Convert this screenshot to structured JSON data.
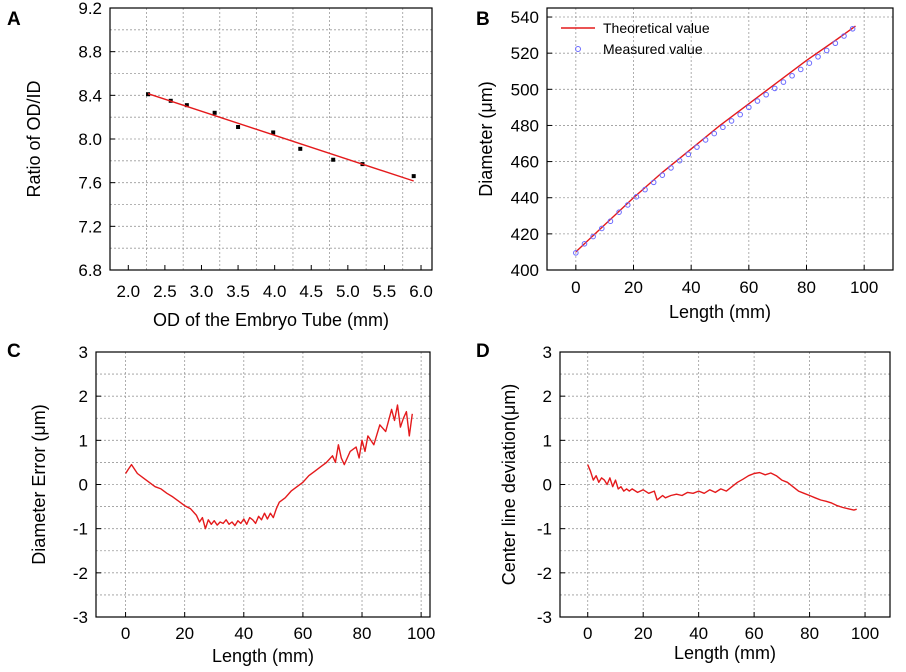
{
  "figure": {
    "colors": {
      "line": "#e41a1c",
      "marker": "#000000",
      "circle": "#6b6bff",
      "grid": "#9a9a9a"
    }
  },
  "chart_data": [
    {
      "id": "A",
      "label": "A",
      "type": "scatter",
      "xlabel": "OD of the Embryo Tube (mm)",
      "ylabel": "Ratio of OD/ID",
      "xlim": [
        1.75,
        6.15
      ],
      "ylim": [
        6.8,
        9.2
      ],
      "xticks": [
        2.0,
        2.5,
        3.0,
        3.5,
        4.0,
        4.5,
        5.0,
        5.5,
        6.0
      ],
      "xtick_labels": [
        "2.0",
        "2.5",
        "3.0",
        "3.5",
        "4.0",
        "4.5",
        "5.0",
        "5.5",
        "6.0"
      ],
      "yticks": [
        6.8,
        7.2,
        7.6,
        8.0,
        8.4,
        8.8,
        9.2
      ],
      "ytick_labels": [
        "6.8",
        "7.2",
        "7.6",
        "8.0",
        "8.4",
        "8.8",
        "9.2"
      ],
      "xgrid": [
        1.75,
        2.25,
        2.75,
        3.25,
        3.75,
        4.25,
        4.75,
        5.25,
        5.75
      ],
      "ygrid": [
        7.0,
        7.2,
        7.4,
        7.6,
        7.8,
        8.0,
        8.2,
        8.4,
        8.6,
        8.8,
        9.0
      ],
      "series": [
        {
          "name": "points",
          "kind": "scatter",
          "x": [
            2.27,
            2.58,
            2.8,
            3.18,
            3.5,
            3.98,
            4.35,
            4.8,
            5.2,
            5.9
          ],
          "y": [
            8.41,
            8.35,
            8.31,
            8.24,
            8.11,
            8.06,
            7.91,
            7.81,
            7.77,
            7.66
          ]
        },
        {
          "name": "fit",
          "kind": "line",
          "x": [
            2.27,
            5.9
          ],
          "y": [
            8.415,
            7.615
          ]
        }
      ]
    },
    {
      "id": "B",
      "label": "B",
      "type": "line",
      "xlabel": "Length (mm)",
      "ylabel": "Diameter (μm)",
      "xlim": [
        -10,
        110
      ],
      "ylim": [
        400,
        545
      ],
      "xticks": [
        0,
        20,
        40,
        60,
        80,
        100
      ],
      "xtick_labels": [
        "0",
        "20",
        "40",
        "60",
        "80",
        "100"
      ],
      "yticks": [
        400,
        420,
        440,
        460,
        480,
        500,
        520,
        540
      ],
      "ytick_labels": [
        "400",
        "420",
        "440",
        "460",
        "480",
        "500",
        "520",
        "540"
      ],
      "xgrid": [
        0,
        20,
        40,
        60,
        80,
        100
      ],
      "ygrid": [
        420,
        440,
        460,
        480,
        500,
        520,
        540
      ],
      "legend": {
        "position": "top-left",
        "entries": [
          "Theoretical value",
          "Measured value"
        ]
      },
      "series": [
        {
          "name": "Theoretical value",
          "kind": "line",
          "x": [
            0,
            10,
            20,
            30,
            40,
            50,
            60,
            70,
            80,
            90,
            97
          ],
          "y": [
            410,
            425,
            440,
            454,
            467,
            480,
            492,
            504,
            516,
            527,
            535
          ]
        },
        {
          "name": "Measured value",
          "kind": "circles",
          "x": [
            0,
            3,
            6,
            9,
            12,
            15,
            18,
            21,
            24,
            27,
            30,
            33,
            36,
            39,
            42,
            45,
            48,
            51,
            54,
            57,
            60,
            63,
            66,
            69,
            72,
            75,
            78,
            81,
            84,
            87,
            90,
            93,
            96
          ],
          "y": [
            409.5,
            414.5,
            418.5,
            423,
            427,
            432,
            436,
            440.5,
            444.5,
            448.5,
            452.5,
            456.5,
            460.5,
            464,
            468,
            472,
            475.5,
            479,
            482.5,
            486,
            490,
            493.5,
            497,
            500.5,
            504,
            507.5,
            511,
            514.5,
            518,
            521.5,
            525.5,
            529.5,
            533.5
          ]
        }
      ]
    },
    {
      "id": "C",
      "label": "C",
      "type": "line",
      "xlabel": "Length (mm)",
      "ylabel": "Diameter Error (μm)",
      "xlim": [
        -10,
        103
      ],
      "ylim": [
        -3,
        3
      ],
      "xticks": [
        0,
        20,
        40,
        60,
        80,
        100
      ],
      "xtick_labels": [
        "0",
        "20",
        "40",
        "60",
        "80",
        "100"
      ],
      "yticks": [
        -3,
        -2,
        -1,
        0,
        1,
        2,
        3
      ],
      "ytick_labels": [
        "-3",
        "-2",
        "-1",
        "0",
        "1",
        "2",
        "3"
      ],
      "xgrid": [
        0,
        20,
        40,
        60,
        80,
        100
      ],
      "ygrid": [
        -2.5,
        -2,
        -1.5,
        -1,
        -0.5,
        0,
        0.5,
        1,
        1.5,
        2,
        2.5
      ],
      "series": [
        {
          "name": "Diameter Error",
          "kind": "line",
          "x": [
            0,
            1,
            2,
            3,
            4,
            6,
            8,
            10,
            12,
            14,
            16,
            18,
            20,
            22,
            24,
            25,
            26,
            27,
            28,
            29,
            30,
            31,
            32,
            33,
            34,
            35,
            36,
            37,
            38,
            39,
            40,
            41,
            42,
            43,
            44,
            45,
            46,
            47,
            48,
            49,
            50,
            51,
            52,
            54,
            56,
            58,
            60,
            62,
            64,
            66,
            68,
            70,
            71,
            72,
            73,
            74,
            76,
            78,
            79,
            80,
            81,
            82,
            84,
            86,
            88,
            90,
            91,
            92,
            93,
            94,
            95,
            96,
            97
          ],
          "y": [
            0.25,
            0.35,
            0.45,
            0.35,
            0.25,
            0.15,
            0.05,
            -0.05,
            -0.1,
            -0.2,
            -0.28,
            -0.38,
            -0.48,
            -0.55,
            -0.7,
            -0.85,
            -0.75,
            -1.0,
            -0.8,
            -0.9,
            -0.82,
            -0.92,
            -0.85,
            -0.88,
            -0.8,
            -0.9,
            -0.85,
            -0.93,
            -0.82,
            -0.88,
            -0.78,
            -0.9,
            -0.75,
            -0.8,
            -0.88,
            -0.72,
            -0.8,
            -0.65,
            -0.78,
            -0.65,
            -0.75,
            -0.55,
            -0.4,
            -0.3,
            -0.15,
            -0.05,
            0.05,
            0.2,
            0.3,
            0.4,
            0.5,
            0.65,
            0.5,
            0.9,
            0.6,
            0.45,
            0.75,
            0.85,
            0.6,
            1.0,
            0.75,
            1.1,
            0.9,
            1.35,
            1.2,
            1.7,
            1.45,
            1.8,
            1.3,
            1.5,
            1.65,
            1.1,
            1.6
          ]
        }
      ]
    },
    {
      "id": "D",
      "label": "D",
      "type": "line",
      "xlabel": "Length (mm)",
      "ylabel": "Center line deviation(μm)",
      "xlim": [
        -10,
        109
      ],
      "ylim": [
        -3,
        3
      ],
      "xticks": [
        0,
        20,
        40,
        60,
        80,
        100
      ],
      "xtick_labels": [
        "0",
        "20",
        "40",
        "60",
        "80",
        "100"
      ],
      "yticks": [
        -3,
        -2,
        -1,
        0,
        1,
        2,
        3
      ],
      "ytick_labels": [
        "-3",
        "-2",
        "-1",
        "0",
        "1",
        "2",
        "3"
      ],
      "xgrid": [
        0,
        20,
        40,
        60,
        80,
        100
      ],
      "ygrid": [
        -2.5,
        -2,
        -1.5,
        -1,
        -0.5,
        0,
        0.5,
        1,
        1.5,
        2,
        2.5
      ],
      "series": [
        {
          "name": "Center line deviation",
          "kind": "line",
          "x": [
            0,
            1,
            2,
            3,
            4,
            5,
            6,
            7,
            8,
            9,
            10,
            11,
            12,
            13,
            14,
            15,
            16,
            18,
            20,
            22,
            24,
            25,
            26,
            27,
            28,
            30,
            32,
            34,
            36,
            38,
            40,
            42,
            44,
            46,
            48,
            50,
            52,
            54,
            56,
            58,
            60,
            62,
            64,
            66,
            68,
            70,
            72,
            74,
            76,
            78,
            80,
            82,
            84,
            86,
            88,
            90,
            92,
            94,
            96,
            97
          ],
          "y": [
            0.45,
            0.3,
            0.1,
            0.2,
            0.05,
            0.15,
            0.1,
            0.0,
            0.15,
            -0.05,
            0.1,
            -0.1,
            -0.05,
            -0.15,
            -0.1,
            -0.15,
            -0.1,
            -0.18,
            -0.12,
            -0.2,
            -0.15,
            -0.35,
            -0.3,
            -0.25,
            -0.3,
            -0.25,
            -0.22,
            -0.25,
            -0.18,
            -0.2,
            -0.15,
            -0.2,
            -0.12,
            -0.18,
            -0.1,
            -0.15,
            -0.05,
            0.05,
            0.12,
            0.2,
            0.25,
            0.27,
            0.22,
            0.26,
            0.2,
            0.1,
            0.05,
            -0.05,
            -0.15,
            -0.2,
            -0.25,
            -0.3,
            -0.35,
            -0.38,
            -0.42,
            -0.48,
            -0.52,
            -0.55,
            -0.58,
            -0.56
          ]
        }
      ]
    }
  ]
}
